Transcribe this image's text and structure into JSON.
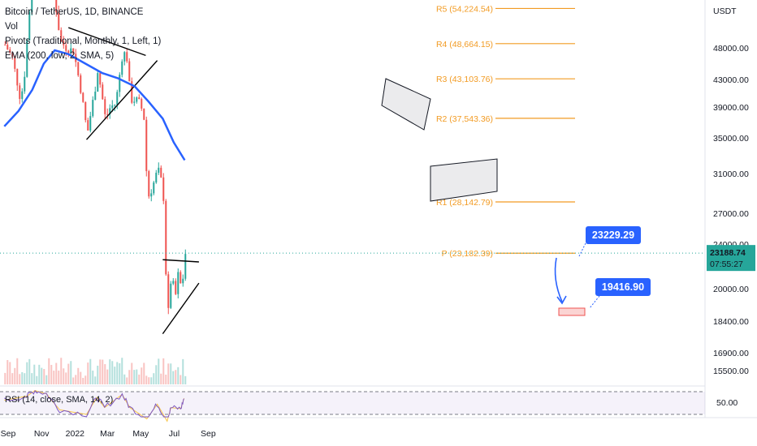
{
  "legend": {
    "symbol": "Bitcoin / TetherUS, 1D, BINANCE",
    "vol": "Vol",
    "pivots": "Pivots (Traditional, Monthly, 1, Left, 1)",
    "ema": "EMA (200, low, 2, SMA, 5)",
    "rsi": "RSI (14, close, SMA, 14, 2)"
  },
  "colors": {
    "up": "#26a69a",
    "down": "#ef5350",
    "ema": "#2962ff",
    "pivot": "#f29b23",
    "rsi": "#7e57c2",
    "rsi_ma": "#f7c548",
    "callout": "#2962ff",
    "current_price": "#26a69a"
  },
  "chart_data": {
    "type": "candlestick",
    "currency_label": "USDT",
    "y_ticks": [
      "48000.00",
      "43000.00",
      "39000.00",
      "35000.00",
      "31000.00",
      "27000.00",
      "24000.00",
      "20000.00",
      "18400.00",
      "16900.00",
      "15500.00"
    ],
    "x_ticks": [
      "Sep",
      "Nov",
      "2022",
      "Mar",
      "May",
      "Jul",
      "Sep"
    ],
    "rsi_tick": "50.00",
    "current_price": "23188.74",
    "countdown": "07:55:27",
    "pivots": [
      {
        "label": "R5 (54,224.54)",
        "value": 54224.54
      },
      {
        "label": "R4 (48,664.15)",
        "value": 48664.15
      },
      {
        "label": "R3 (43,103.76)",
        "value": 43103.76
      },
      {
        "label": "R2 (37,543.36)",
        "value": 37543.36
      },
      {
        "label": "R1 (28,142.79)",
        "value": 28142.79
      },
      {
        "label": "P (23,182.39)",
        "value": 23182.39
      }
    ],
    "callouts": [
      "23229.29",
      "19416.90"
    ],
    "ema_path": [
      [
        "2021-08-25",
        36500
      ],
      [
        "2021-09-20",
        38500
      ],
      [
        "2021-10-15",
        41500
      ],
      [
        "2021-11-05",
        45500
      ],
      [
        "2021-11-25",
        47600
      ],
      [
        "2021-12-20",
        47000
      ],
      [
        "2022-01-20",
        45500
      ],
      [
        "2022-02-20",
        44000
      ],
      [
        "2022-03-20",
        43200
      ],
      [
        "2022-04-20",
        42000
      ],
      [
        "2022-05-15",
        39800
      ],
      [
        "2022-06-10",
        37500
      ],
      [
        "2022-06-30",
        34500
      ],
      [
        "2022-07-20",
        32500
      ]
    ],
    "close_path": [
      [
        "2021-08-25",
        48500
      ],
      [
        "2021-09-07",
        46500
      ],
      [
        "2021-09-21",
        40500
      ],
      [
        "2021-09-28",
        42000
      ],
      [
        "2021-10-06",
        51500
      ],
      [
        "2021-10-20",
        65000
      ],
      [
        "2021-11-10",
        67500
      ],
      [
        "2021-11-22",
        57000
      ],
      [
        "2021-12-04",
        49000
      ],
      [
        "2021-12-15",
        48000
      ],
      [
        "2021-12-28",
        47500
      ],
      [
        "2022-01-10",
        41500
      ],
      [
        "2022-01-22",
        35500
      ],
      [
        "2022-02-05",
        41500
      ],
      [
        "2022-02-10",
        44500
      ],
      [
        "2022-02-24",
        37500
      ],
      [
        "2022-03-05",
        39000
      ],
      [
        "2022-03-15",
        39500
      ],
      [
        "2022-03-28",
        47500
      ],
      [
        "2022-04-04",
        46500
      ],
      [
        "2022-04-11",
        40000
      ],
      [
        "2022-04-25",
        40000
      ],
      [
        "2022-05-05",
        38000
      ],
      [
        "2022-05-10",
        31000
      ],
      [
        "2022-05-12",
        28500
      ],
      [
        "2022-05-20",
        29500
      ],
      [
        "2022-05-31",
        31500
      ],
      [
        "2022-06-07",
        30000
      ],
      [
        "2022-06-10",
        28500
      ],
      [
        "2022-06-13",
        22500
      ],
      [
        "2022-06-18",
        18500
      ],
      [
        "2022-06-25",
        21300
      ],
      [
        "2022-07-01",
        19300
      ],
      [
        "2022-07-08",
        21800
      ],
      [
        "2022-07-13",
        19500
      ],
      [
        "2022-07-18",
        22500
      ],
      [
        "2022-07-20",
        23188.74
      ]
    ],
    "rsi_values": [
      [
        "2021-08-25",
        55
      ],
      [
        "2021-10-05",
        62
      ],
      [
        "2021-10-20",
        72
      ],
      [
        "2021-11-10",
        66
      ],
      [
        "2021-12-04",
        38
      ],
      [
        "2022-01-22",
        30
      ],
      [
        "2022-02-10",
        60
      ],
      [
        "2022-02-24",
        42
      ],
      [
        "2022-03-28",
        65
      ],
      [
        "2022-04-11",
        42
      ],
      [
        "2022-05-12",
        22
      ],
      [
        "2022-05-31",
        48
      ],
      [
        "2022-06-18",
        18
      ],
      [
        "2022-06-25",
        42
      ],
      [
        "2022-07-13",
        40
      ],
      [
        "2022-07-20",
        62
      ]
    ],
    "grid": false
  }
}
